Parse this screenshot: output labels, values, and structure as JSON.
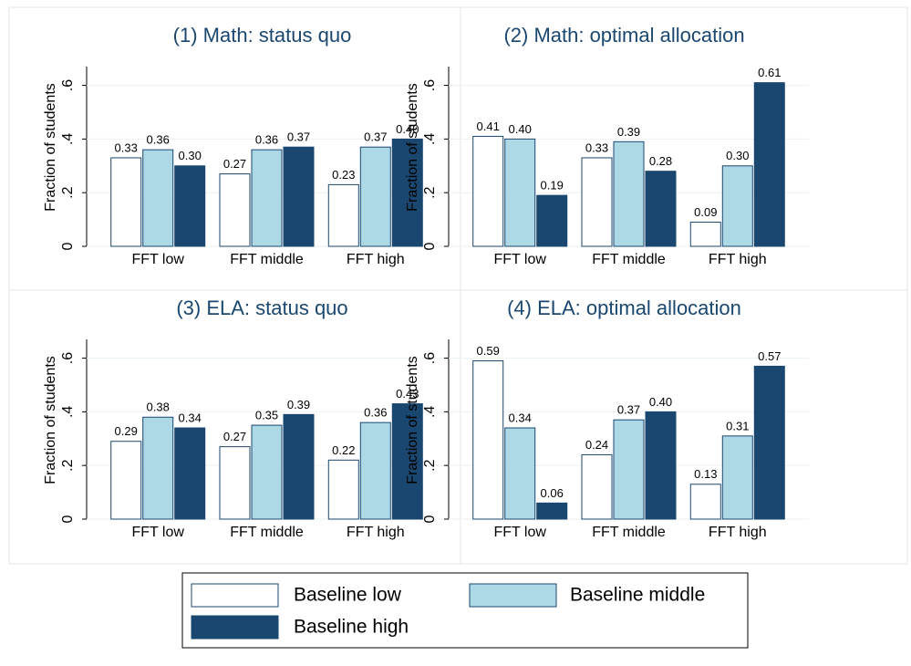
{
  "chart_data": [
    {
      "type": "bar",
      "title": "(1) Math: status quo",
      "y_label": "Fraction of students",
      "categories": [
        "FFT low",
        "FFT middle",
        "FFT high"
      ],
      "series": [
        {
          "values": [
            0.33,
            0.27,
            0.23
          ],
          "value_labels": [
            "0.33",
            "0.27",
            "0.23"
          ]
        },
        {
          "values": [
            0.36,
            0.36,
            0.37
          ],
          "value_labels": [
            "0.36",
            "0.36",
            "0.37"
          ]
        },
        {
          "values": [
            0.3,
            0.37,
            0.4
          ],
          "value_labels": [
            "0.30",
            "0.37",
            "0.40"
          ]
        }
      ],
      "ylim": [
        0,
        0.67
      ],
      "yticks": [
        0,
        {
          "value": 0.2,
          "label": ".2"
        },
        {
          "value": 0.4,
          "label": ".4"
        },
        {
          "value": 0.6,
          "label": ".6"
        }
      ]
    },
    {
      "type": "bar",
      "title": "(2) Math: optimal allocation",
      "y_label": "Fraction of students",
      "categories": [
        "FFT low",
        "FFT middle",
        "FFT high"
      ],
      "series": [
        {
          "values": [
            0.41,
            0.33,
            0.09
          ],
          "value_labels": [
            "0.41",
            "0.33",
            "0.09"
          ]
        },
        {
          "values": [
            0.4,
            0.39,
            0.3
          ],
          "value_labels": [
            "0.40",
            "0.39",
            "0.30"
          ]
        },
        {
          "values": [
            0.19,
            0.28,
            0.61
          ],
          "value_labels": [
            "0.19",
            "0.28",
            "0.61"
          ]
        }
      ],
      "ylim": [
        0,
        0.67
      ],
      "yticks": [
        0,
        {
          "value": 0.2,
          "label": ".2"
        },
        {
          "value": 0.4,
          "label": ".4"
        },
        {
          "value": 0.6,
          "label": ".6"
        }
      ]
    },
    {
      "type": "bar",
      "title": "(3) ELA: status quo",
      "y_label": "Fraction of students",
      "categories": [
        "FFT low",
        "FFT middle",
        "FFT high"
      ],
      "series": [
        {
          "values": [
            0.29,
            0.27,
            0.22
          ],
          "value_labels": [
            "0.29",
            "0.27",
            "0.22"
          ]
        },
        {
          "values": [
            0.38,
            0.35,
            0.36
          ],
          "value_labels": [
            "0.38",
            "0.35",
            "0.36"
          ]
        },
        {
          "values": [
            0.34,
            0.39,
            0.43
          ],
          "value_labels": [
            "0.34",
            "0.39",
            "0.43"
          ]
        }
      ],
      "ylim": [
        0,
        0.67
      ],
      "yticks": [
        0,
        {
          "value": 0.2,
          "label": ".2"
        },
        {
          "value": 0.4,
          "label": ".4"
        },
        {
          "value": 0.6,
          "label": ".6"
        }
      ]
    },
    {
      "type": "bar",
      "title": "(4) ELA: optimal allocation",
      "y_label": "Fraction of students",
      "categories": [
        "FFT low",
        "FFT middle",
        "FFT high"
      ],
      "series": [
        {
          "values": [
            0.59,
            0.24,
            0.13
          ],
          "value_labels": [
            "0.59",
            "0.24",
            "0.13"
          ]
        },
        {
          "values": [
            0.34,
            0.37,
            0.31
          ],
          "value_labels": [
            "0.34",
            "0.37",
            "0.31"
          ]
        },
        {
          "values": [
            0.06,
            0.4,
            0.57
          ],
          "value_labels": [
            "0.06",
            "0.40",
            "0.57"
          ]
        }
      ],
      "ylim": [
        0,
        0.67
      ],
      "yticks": [
        0,
        {
          "value": 0.2,
          "label": ".2"
        },
        {
          "value": 0.4,
          "label": ".4"
        },
        {
          "value": 0.6,
          "label": ".6"
        }
      ]
    }
  ],
  "legend": {
    "entries": [
      {
        "name": "Baseline low",
        "color": "#ffffff"
      },
      {
        "name": "Baseline middle",
        "color": "#add8e6"
      },
      {
        "name": "Baseline high",
        "color": "#1a476f"
      }
    ]
  }
}
